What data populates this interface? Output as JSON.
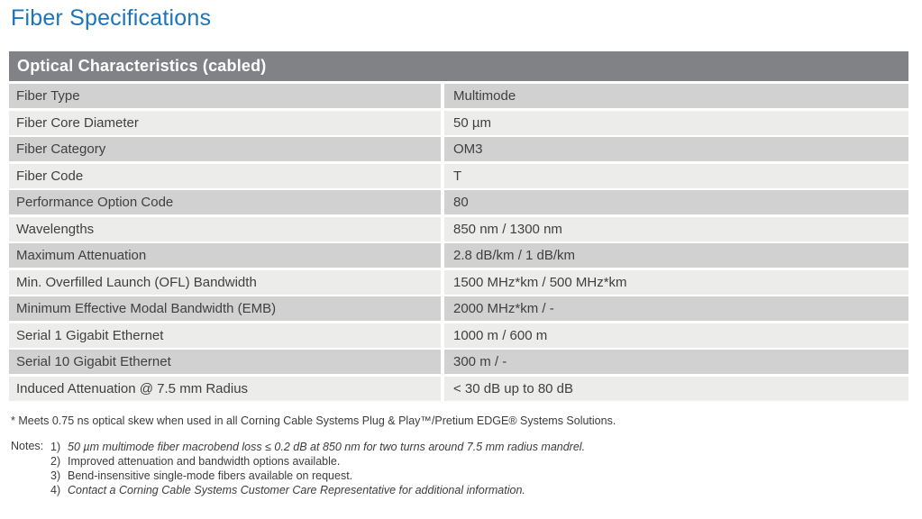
{
  "page": {
    "title": "Fiber Specifications"
  },
  "table": {
    "header": "Optical Characteristics (cabled)",
    "rows": [
      {
        "label": "Fiber Type",
        "value": "Multimode"
      },
      {
        "label": "Fiber Core Diameter",
        "value": "50 µm"
      },
      {
        "label": "Fiber Category",
        "value": "OM3"
      },
      {
        "label": "Fiber Code",
        "value": "T"
      },
      {
        "label": "Performance Option Code",
        "value": "80"
      },
      {
        "label": "Wavelengths",
        "value": "850 nm / 1300 nm"
      },
      {
        "label": "Maximum Attenuation",
        "value": "2.8 dB/km / 1 dB/km"
      },
      {
        "label": "Min. Overfilled Launch (OFL) Bandwidth",
        "value": "1500 MHz*km / 500 MHz*km"
      },
      {
        "label": "Minimum Effective Modal Bandwidth (EMB)",
        "value": "2000 MHz*km / -"
      },
      {
        "label": "Serial 1 Gigabit Ethernet",
        "value": "1000 m / 600 m"
      },
      {
        "label": "Serial 10 Gigabit Ethernet",
        "value": "300 m / -"
      },
      {
        "label": "Induced Attenuation @ 7.5 mm Radius",
        "value": "< 30 dB up to 80 dB"
      }
    ]
  },
  "footnote": "* Meets 0.75 ns optical skew when used in all Corning Cable Systems Plug & Play™/Pretium EDGE® Systems Solutions.",
  "notes": {
    "label": "Notes:",
    "items": [
      {
        "num": "1)",
        "text": "50 µm multimode fiber macrobend loss ≤ 0.2 dB at 850 nm for two turns around 7.5 mm radius mandrel."
      },
      {
        "num": "2)",
        "text": "Improved attenuation and bandwidth options available."
      },
      {
        "num": "3)",
        "text": "Bend-insensitive single-mode fibers available on request."
      },
      {
        "num": "4)",
        "text": "Contact a Corning Cable Systems Customer Care Representative for additional information."
      }
    ]
  },
  "colors": {
    "title_blue": "#1b75bc",
    "header_gray": "#808285",
    "row_dark": "#d1d1d1",
    "row_light": "#ececeb"
  }
}
